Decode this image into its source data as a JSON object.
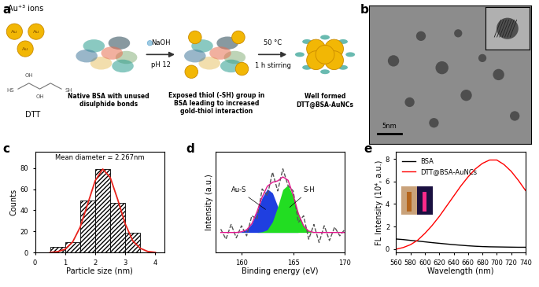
{
  "panel_labels": [
    "a",
    "b",
    "c",
    "d",
    "e"
  ],
  "diagram": {
    "ions": "Au⁺³ ions",
    "atom": "Au",
    "ligand": "DTT",
    "ligand_groups": [
      "HS",
      "OH",
      "OH",
      "SH"
    ],
    "step1": "Native BSA with unused\ndisulphide bonds",
    "reagent": "NaOH",
    "ph": "pH 12",
    "step2": "Exposed thiol (-SH) group in\nBSA leading to increased\ngold-thiol interaction",
    "temperature": "50 °C",
    "time": "1 h stirring",
    "product": "Well formed\nDTT@BSA-AuNCs"
  },
  "image": {
    "scale_bar": "5nm"
  },
  "chart_data": [
    {
      "type": "histogram",
      "bins": [
        0.5,
        1.0,
        1.5,
        2.0,
        2.5,
        3.0,
        3.5
      ],
      "counts": [
        5,
        10,
        49,
        79,
        47,
        19
      ],
      "color": "#ffffff",
      "series": [
        {
          "type": "line",
          "color": "#e8231c",
          "x": [
            0.5,
            0.75,
            1.0,
            1.25,
            1.5,
            1.75,
            2.0,
            2.25,
            2.5,
            2.75,
            3.0,
            3.25,
            3.5,
            3.75,
            4.0
          ],
          "values": [
            0.2,
            0.8,
            3.2,
            10,
            24,
            46,
            68,
            79,
            71,
            50,
            27,
            11,
            4,
            1,
            0.2
          ]
        }
      ],
      "annotation": "Mean diameter = 2.267nm",
      "xlabel": "Particle size (nm)",
      "ylabel": "Counts",
      "xlim": [
        0,
        4.3
      ],
      "xticks": [
        0,
        1,
        2,
        3,
        4
      ],
      "ylim": [
        0,
        95
      ],
      "yticks": [
        0,
        20,
        40,
        60,
        80
      ]
    },
    {
      "type": "line",
      "x": [
        158,
        158.5,
        159,
        159.5,
        160,
        160.5,
        161,
        161.5,
        162,
        162.5,
        163,
        163.5,
        164,
        164.5,
        165,
        165.5,
        166,
        166.5,
        167,
        167.5,
        168,
        168.5,
        169,
        169.5,
        170
      ],
      "series": [
        {
          "type": "area",
          "name": "Au-S",
          "color": "#1f3fe0",
          "values": [
            0,
            0,
            0,
            0,
            0.01,
            0.04,
            0.13,
            0.31,
            0.52,
            0.65,
            0.59,
            0.39,
            0.19,
            0.07,
            0.02,
            0,
            0,
            0,
            0,
            0,
            0,
            0,
            0,
            0,
            0
          ]
        },
        {
          "type": "area",
          "name": "S-H",
          "color": "#22dd22",
          "values": [
            0,
            0,
            0,
            0,
            0,
            0,
            0,
            0,
            0.01,
            0.04,
            0.16,
            0.38,
            0.64,
            0.71,
            0.54,
            0.28,
            0.1,
            0.02,
            0,
            0,
            0,
            0,
            0,
            0,
            0
          ]
        },
        {
          "type": "line",
          "color": "#555555",
          "line_style": "dashed",
          "values": [
            0.05,
            -0.1,
            0.12,
            -0.08,
            0.1,
            -0.05,
            0.25,
            0.2,
            0.65,
            0.55,
            0.9,
            0.62,
            0.95,
            0.7,
            0.62,
            0.15,
            0.25,
            -0.1,
            0.12,
            -0.15,
            0.1,
            -0.12,
            0.08,
            -0.05,
            0.05
          ]
        },
        {
          "type": "line",
          "color": "#e0158c",
          "line_style": "solid",
          "values": [
            0,
            0,
            0,
            0,
            0.01,
            0.04,
            0.13,
            0.31,
            0.53,
            0.69,
            0.75,
            0.77,
            0.83,
            0.78,
            0.56,
            0.28,
            0.1,
            0.02,
            0,
            0,
            0,
            0,
            0,
            0,
            0
          ]
        }
      ],
      "xlabel": "Binding energy (eV)",
      "ylabel": "Intensity (a.u.)",
      "xlim": [
        157.5,
        170
      ],
      "xticks": [
        160,
        165,
        170
      ],
      "ylim": [
        -0.3,
        1.2
      ],
      "tick_labels": "x"
    },
    {
      "type": "line",
      "x": [
        560,
        570,
        580,
        590,
        600,
        610,
        620,
        630,
        640,
        650,
        660,
        670,
        680,
        690,
        700,
        710,
        720,
        730,
        740
      ],
      "series": [
        {
          "name": "BSA",
          "color": "#000000",
          "values": [
            0.9,
            0.85,
            0.78,
            0.72,
            0.65,
            0.58,
            0.52,
            0.46,
            0.4,
            0.35,
            0.3,
            0.26,
            0.23,
            0.21,
            0.2,
            0.19,
            0.18,
            0.17,
            0.17
          ]
        },
        {
          "name": "DTT@BSA-AuNCs",
          "color": "#ff0000",
          "values": [
            0.0,
            0.15,
            0.4,
            0.8,
            1.4,
            2.1,
            2.9,
            3.8,
            4.7,
            5.6,
            6.4,
            7.1,
            7.6,
            7.9,
            7.9,
            7.5,
            6.9,
            6.1,
            5.2
          ]
        }
      ],
      "xlabel": "Wavelength (nm)",
      "ylabel": "FL Intensity (10⁴, a.u.)",
      "xlim": [
        560,
        740
      ],
      "xticks": [
        560,
        580,
        600,
        620,
        640,
        660,
        680,
        700,
        720,
        740
      ],
      "ylim": [
        -0.3,
        8.6
      ],
      "yticks": [
        0,
        2,
        4,
        6,
        8
      ],
      "legend": "upper left"
    }
  ]
}
